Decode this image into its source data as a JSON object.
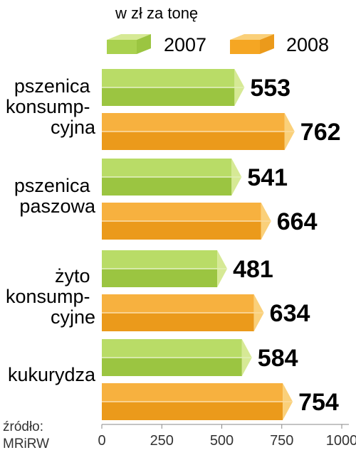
{
  "chart_data": {
    "type": "bar",
    "orientation": "horizontal",
    "unit_label": "w zł za tonę",
    "categories": [
      [
        "pszenica",
        "konsump-",
        "cyjna"
      ],
      [
        "pszenica",
        "paszowa"
      ],
      [
        "żyto",
        "konsump-",
        "cyjne"
      ],
      [
        "kukurydza"
      ]
    ],
    "series": [
      {
        "name": "2007",
        "color": "#a9d14f",
        "values": [
          553,
          541,
          481,
          584
        ]
      },
      {
        "name": "2008",
        "color": "#f5a623",
        "values": [
          762,
          664,
          634,
          754
        ]
      }
    ],
    "value_labels": [
      [
        "553",
        "762"
      ],
      [
        "541",
        "664"
      ],
      [
        "481",
        "634"
      ],
      [
        "584",
        "754"
      ]
    ],
    "xlim": [
      0,
      1000
    ],
    "xticks": [
      "0",
      "250",
      "500",
      "750",
      "1000"
    ],
    "grid": false,
    "legend_position": "top",
    "source": [
      "źródło:",
      "MRiRW"
    ]
  }
}
